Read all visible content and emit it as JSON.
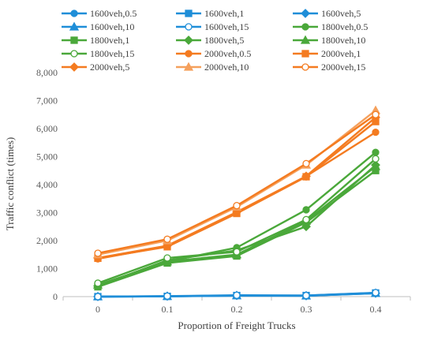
{
  "colors": {
    "1600veh": "#1f8ed8",
    "1800veh": "#4aa83a",
    "2000veh": "#f47b20",
    "2000veh_light": "#f5a05c",
    "grid": "#d9d9d9"
  },
  "chart_data": {
    "type": "line",
    "xlabel": "Proportion of Freight Trucks",
    "ylabel": "Traffic conflict (times)",
    "categories": [
      "0",
      "0.1",
      "0.2",
      "0.3",
      "0.4"
    ],
    "ylim": [
      0,
      8000
    ],
    "yticks": [
      "0",
      "1,000",
      "2,000",
      "3,000",
      "4,000",
      "5,000",
      "6,000",
      "7,000",
      "8,000"
    ],
    "grid": false,
    "legend_position": "top",
    "series": [
      {
        "name": "1600veh,0.5",
        "color": "#1f8ed8",
        "marker": "circle",
        "filled": true,
        "values": [
          0,
          10,
          30,
          30,
          130
        ]
      },
      {
        "name": "1600veh,1",
        "color": "#1f8ed8",
        "marker": "square",
        "filled": true,
        "values": [
          0,
          10,
          40,
          40,
          130
        ]
      },
      {
        "name": "1600veh,5",
        "color": "#1f8ed8",
        "marker": "diamond",
        "filled": true,
        "values": [
          0,
          15,
          40,
          30,
          120
        ]
      },
      {
        "name": "1600veh,10",
        "color": "#1f8ed8",
        "marker": "triangle",
        "filled": true,
        "values": [
          0,
          10,
          35,
          30,
          120
        ]
      },
      {
        "name": "1600veh,15",
        "color": "#1f8ed8",
        "marker": "circle",
        "filled": false,
        "values": [
          0,
          20,
          50,
          40,
          140
        ]
      },
      {
        "name": "1800veh,0.5",
        "color": "#4aa83a",
        "marker": "circle",
        "filled": true,
        "values": [
          400,
          1250,
          1750,
          3100,
          5150
        ]
      },
      {
        "name": "1800veh,1",
        "color": "#4aa83a",
        "marker": "square",
        "filled": true,
        "values": [
          350,
          1200,
          1450,
          2650,
          4500
        ]
      },
      {
        "name": "1800veh,5",
        "color": "#4aa83a",
        "marker": "diamond",
        "filled": true,
        "values": [
          380,
          1300,
          1650,
          2500,
          4700
        ]
      },
      {
        "name": "1800veh,10",
        "color": "#4aa83a",
        "marker": "triangle",
        "filled": true,
        "values": [
          420,
          1250,
          1500,
          2700,
          4650
        ]
      },
      {
        "name": "1800veh,15",
        "color": "#4aa83a",
        "marker": "circle",
        "filled": false,
        "values": [
          480,
          1380,
          1600,
          2750,
          4920
        ]
      },
      {
        "name": "2000veh,0.5",
        "color": "#f47b20",
        "marker": "circle",
        "filled": true,
        "values": [
          1350,
          1800,
          3000,
          4300,
          5870
        ]
      },
      {
        "name": "2000veh,1",
        "color": "#f47b20",
        "marker": "square",
        "filled": true,
        "values": [
          1370,
          1780,
          2970,
          4280,
          6250
        ]
      },
      {
        "name": "2000veh,5",
        "color": "#f47b20",
        "marker": "diamond",
        "filled": true,
        "values": [
          1380,
          1820,
          3020,
          4300,
          6400
        ]
      },
      {
        "name": "2000veh,10",
        "color": "#f5a05c",
        "marker": "triangle",
        "filled": true,
        "values": [
          1500,
          2000,
          3200,
          4700,
          6650
        ]
      },
      {
        "name": "2000veh,15",
        "color": "#f47b20",
        "marker": "circle",
        "filled": false,
        "values": [
          1550,
          2050,
          3250,
          4750,
          6500
        ]
      }
    ]
  }
}
